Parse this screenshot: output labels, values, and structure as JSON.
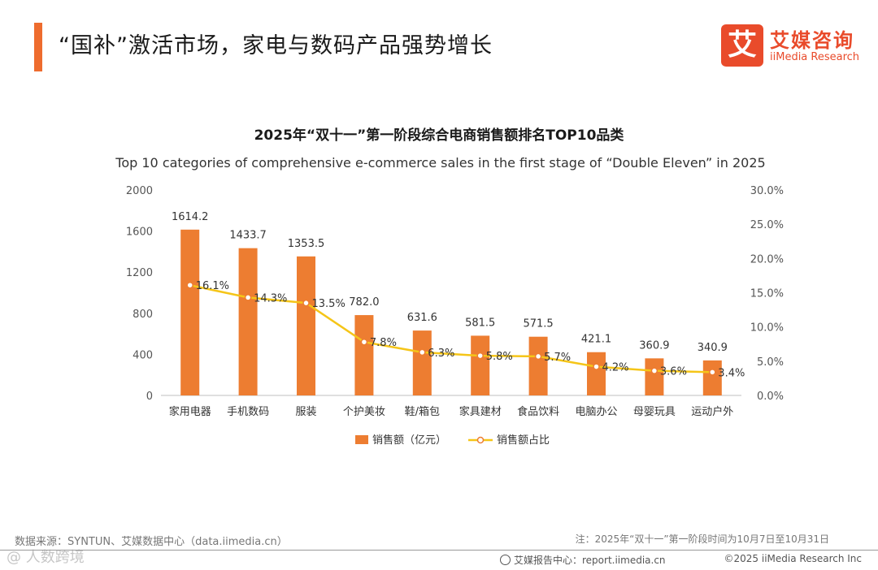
{
  "header": {
    "title": "“国补”激活市场，家电与数码产品强势增长",
    "logo_mark": "艾",
    "logo_cn": "艾媒咨询",
    "logo_en": "iiMedia Research"
  },
  "colors": {
    "accent": "#ee6c2e",
    "bar": "#ed7d31",
    "line": "#f5c518",
    "logo": "#e94b2b"
  },
  "chart_data": {
    "type": "bar",
    "title": "2025年“双十一”第一阶段综合电商销售额排名TOP10品类",
    "subtitle": "Top 10 categories of comprehensive e-commerce sales in the first stage of “Double Eleven” in 2025",
    "categories": [
      "家用电器",
      "手机数码",
      "服装",
      "个护美妆",
      "鞋/箱包",
      "家具建材",
      "食品饮料",
      "电脑办公",
      "母婴玩具",
      "运动户外"
    ],
    "series": [
      {
        "name": "销售额（亿元）",
        "type": "bar",
        "axis": "left",
        "values": [
          1614.2,
          1433.7,
          1353.5,
          782.0,
          631.6,
          581.5,
          571.5,
          421.1,
          360.9,
          340.9
        ],
        "labels": [
          "1614.2",
          "1433.7",
          "1353.5",
          "782.0",
          "631.6",
          "581.5",
          "571.5",
          "421.1",
          "360.9",
          "340.9"
        ]
      },
      {
        "name": "销售额占比",
        "type": "line",
        "axis": "right",
        "values": [
          16.1,
          14.3,
          13.5,
          7.8,
          6.3,
          5.8,
          5.7,
          4.2,
          3.6,
          3.4
        ],
        "labels": [
          "16.1%",
          "14.3%",
          "13.5%",
          "7.8%",
          "6.3%",
          "5.8%",
          "5.7%",
          "4.2%",
          "3.6%",
          "3.4%"
        ]
      }
    ],
    "ylim": [
      0,
      2000
    ],
    "yticks": [
      "0",
      "400",
      "800",
      "1200",
      "1600",
      "2000"
    ],
    "y2lim": [
      0,
      30
    ],
    "y2ticks": [
      "0.0%",
      "5.0%",
      "10.0%",
      "15.0%",
      "20.0%",
      "25.0%",
      "30.0%"
    ],
    "legend": [
      "销售额（亿元）",
      "销售额占比"
    ],
    "legend_position": "bottom",
    "grid": false
  },
  "footer": {
    "source": "数据来源：SYNTUN、艾媒数据中心（data.iimedia.cn）",
    "note": "注：2025年“双十一”第一阶段时间为10月7日至10月31日",
    "report_center": "艾媒报告中心：report.iimedia.cn",
    "copyright": "©2025  iiMedia Research  Inc",
    "watermark": "@ 人数跨境"
  }
}
